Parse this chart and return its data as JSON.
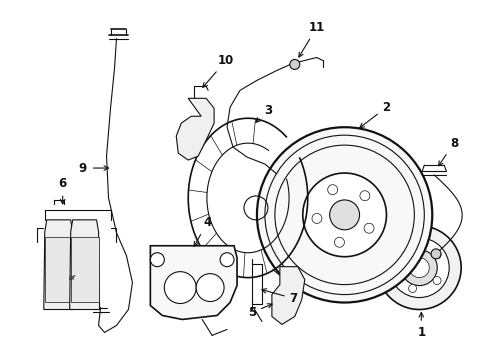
{
  "background_color": "#ffffff",
  "fig_width": 4.89,
  "fig_height": 3.6,
  "dpi": 100,
  "line_color": "#111111",
  "label_fontsize": 8.5
}
